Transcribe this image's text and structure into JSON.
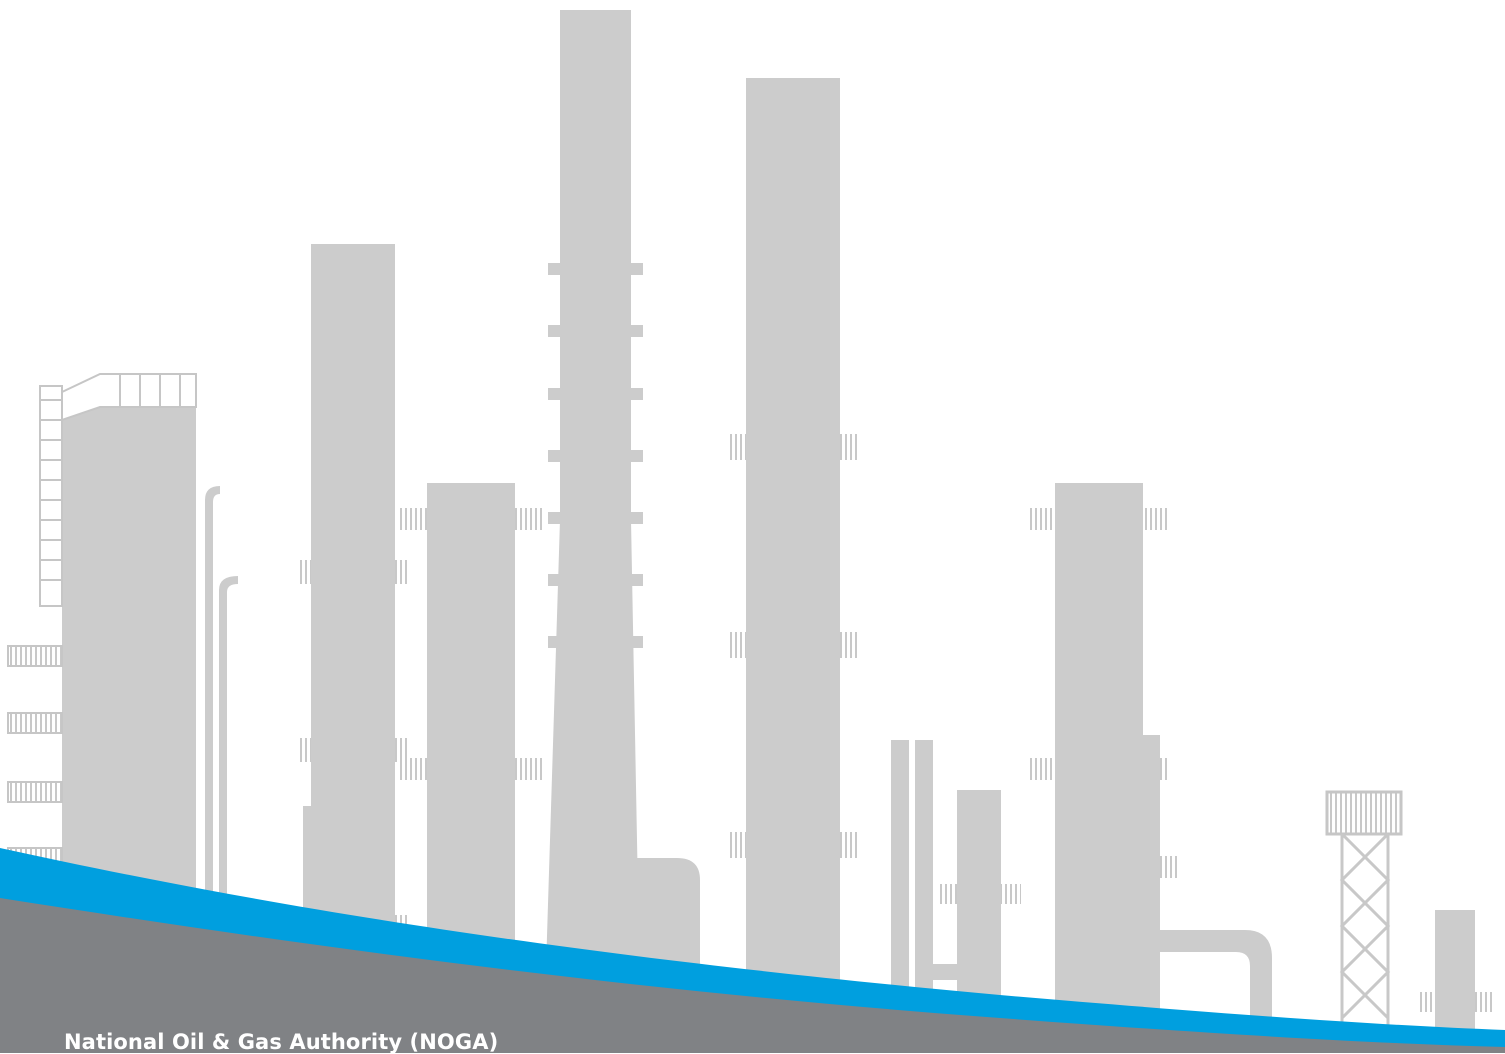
{
  "footer": {
    "organization": "National Oil & Gas Authority (NOGA)"
  },
  "colors": {
    "structure": "#cccccc",
    "railing": "#d0d0d0",
    "band_blue": "#009fdf",
    "band_gray": "#808285",
    "background": "#ffffff"
  },
  "illustration": {
    "subject": "refinery-silhouette"
  }
}
